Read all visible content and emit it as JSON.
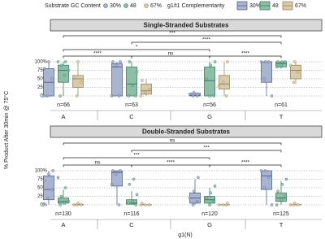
{
  "chart_data": {
    "type": "box",
    "ylabel": "% Product After 30min @ 75°C",
    "xlabel": "g1(N)",
    "point_legend_title": "Substrate GC Content",
    "box_legend_title": "g1/t1 Complementarity",
    "series": [
      {
        "name": "30%",
        "color": "#a9b5cf",
        "edge": "#52668e"
      },
      {
        "name": "48",
        "color": "#8cbfa6",
        "edge": "#3d7c63"
      },
      {
        "name": "67%",
        "color": "#d8cba9",
        "edge": "#9a885c"
      }
    ],
    "categories": [
      "A",
      "C",
      "G",
      "T"
    ],
    "ylim": [
      0,
      100
    ],
    "yticks": [
      {
        "value": 0,
        "label": "0%"
      },
      {
        "value": 25,
        "label": "25%"
      },
      {
        "value": 50,
        "label": "50%"
      },
      {
        "value": 75,
        "label": "75%"
      },
      {
        "value": 100,
        "label": "100%"
      }
    ],
    "grid": true,
    "panels": [
      {
        "title": "Single-Stranded Substrates",
        "n_labels": [
          "n=66",
          "n=63",
          "n=56",
          "n=61"
        ],
        "boxes": [
          [
            [
              0,
              0,
              40,
              80,
              100
            ],
            [
              0,
              40,
              75,
              90,
              100
            ],
            [
              0,
              25,
              50,
              60,
              100
            ]
          ],
          [
            [
              0,
              0,
              85,
              95,
              100
            ],
            [
              0,
              0,
              35,
              85,
              100
            ],
            [
              0,
              5,
              15,
              35,
              50
            ]
          ],
          [
            [
              0,
              0,
              2,
              8,
              10
            ],
            [
              0,
              0,
              45,
              85,
              100
            ],
            [
              0,
              20,
              35,
              60,
              100
            ]
          ],
          [
            [
              0,
              40,
              100,
              100,
              100
            ],
            [
              80,
              85,
              95,
              100,
              100
            ],
            [
              35,
              50,
              75,
              90,
              100
            ]
          ]
        ],
        "points": [
          [
            [
              0,
              0,
              50,
              80,
              100
            ],
            [
              0,
              60,
              75,
              90,
              100,
              100
            ],
            [
              0,
              40,
              55,
              100
            ]
          ],
          [
            [
              0,
              0,
              90,
              100,
              100
            ],
            [
              0,
              0,
              30,
              70,
              100
            ],
            [
              0,
              10,
              20,
              45
            ]
          ],
          [
            [
              0,
              0,
              5,
              10
            ],
            [
              0,
              0,
              50,
              90,
              100
            ],
            [
              0,
              30,
              40,
              100
            ]
          ],
          [
            [
              0,
              50,
              100,
              100,
              100
            ],
            [
              85,
              90,
              100,
              100,
              100
            ],
            [
              40,
              70,
              90,
              100
            ]
          ]
        ],
        "brackets": [
          {
            "from": 0,
            "to": 1,
            "label": "****"
          },
          {
            "from": 1,
            "to": 2,
            "label": "ns"
          },
          {
            "from": 2,
            "to": 3,
            "label": "****"
          },
          {
            "from": 0,
            "to": 2,
            "label": "*"
          },
          {
            "from": 1,
            "to": 3,
            "label": "****"
          },
          {
            "from": 0,
            "to": 3,
            "label": "***"
          }
        ]
      },
      {
        "title": "Double-Stranded Substrates",
        "n_labels": [
          "n=130",
          "n=116",
          "n=120",
          "n=125"
        ],
        "boxes": [
          [
            [
              0,
              15,
              45,
              85,
              100
            ],
            [
              0,
              5,
              10,
              20,
              45
            ],
            [
              0,
              0,
              0,
              2,
              5
            ]
          ],
          [
            [
              0,
              55,
              95,
              100,
              100
            ],
            [
              0,
              2,
              5,
              15,
              40
            ],
            [
              0,
              0,
              0,
              1,
              3
            ]
          ],
          [
            [
              0,
              5,
              20,
              35,
              75
            ],
            [
              0,
              5,
              15,
              25,
              50
            ],
            [
              0,
              0,
              0,
              1,
              3
            ]
          ],
          [
            [
              0,
              45,
              85,
              100,
              100
            ],
            [
              0,
              10,
              20,
              35,
              70
            ],
            [
              0,
              0,
              0,
              1,
              3
            ]
          ]
        ],
        "points": [
          [
            [
              0,
              20,
              45,
              70,
              90,
              100
            ],
            [
              0,
              5,
              10,
              25,
              50,
              80
            ],
            [
              0,
              0,
              0,
              5
            ]
          ],
          [
            [
              0,
              60,
              90,
              100,
              100
            ],
            [
              0,
              5,
              10,
              30,
              60,
              75
            ],
            [
              0,
              0,
              0,
              5
            ]
          ],
          [
            [
              0,
              10,
              20,
              40,
              80
            ],
            [
              0,
              10,
              20,
              35,
              55
            ],
            [
              0,
              0,
              0,
              5
            ]
          ],
          [
            [
              0,
              50,
              80,
              100,
              100
            ],
            [
              0,
              15,
              25,
              40,
              60,
              75
            ],
            [
              0,
              0,
              0,
              5
            ]
          ]
        ],
        "brackets": [
          {
            "from": 0,
            "to": 1,
            "label": "ns"
          },
          {
            "from": 1,
            "to": 2,
            "label": "****"
          },
          {
            "from": 2,
            "to": 3,
            "label": "****"
          },
          {
            "from": 0,
            "to": 2,
            "label": "***"
          },
          {
            "from": 1,
            "to": 3,
            "label": "***"
          },
          {
            "from": 0,
            "to": 3,
            "label": "ns"
          }
        ]
      }
    ]
  }
}
